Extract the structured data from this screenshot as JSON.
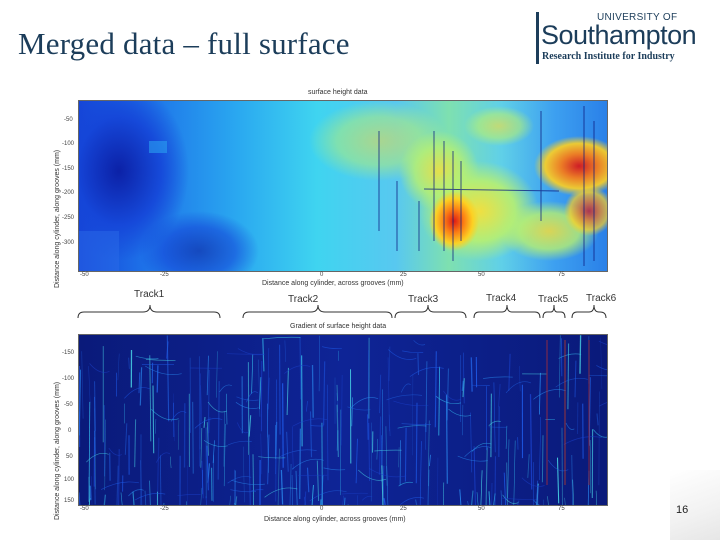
{
  "slide": {
    "title": "Merged data – full surface",
    "page_number": "16"
  },
  "logo": {
    "university_of": "UNIVERSITY OF",
    "name": "Southampton",
    "institute": "Research Institute for Industry"
  },
  "top_plot": {
    "title": "surface height data",
    "xlabel": "Distance along cylinder, across grooves (mm)",
    "ylabel": "Distance along cylinder, along grooves (mm)",
    "x_ticks": [
      "-50",
      "-25",
      "0",
      "25",
      "50",
      "75"
    ],
    "y_ticks": [
      "-50",
      "-100",
      "-150",
      "-200",
      "-250",
      "-300"
    ]
  },
  "bottom_plot": {
    "title": "Gradient of surface height data",
    "xlabel": "Distance along cylinder, across grooves (mm)",
    "ylabel": "Distance along cylinder, along grooves (mm)",
    "x_ticks": [
      "-50",
      "-25",
      "0",
      "25",
      "50",
      "75"
    ],
    "y_ticks": [
      "-150",
      "-100",
      "-50",
      "0",
      "50",
      "100",
      "150"
    ]
  },
  "tracks": [
    {
      "label": "Track1"
    },
    {
      "label": "Track2"
    },
    {
      "label": "Track3"
    },
    {
      "label": "Track4"
    },
    {
      "label": "Track5"
    },
    {
      "label": "Track6"
    }
  ]
}
